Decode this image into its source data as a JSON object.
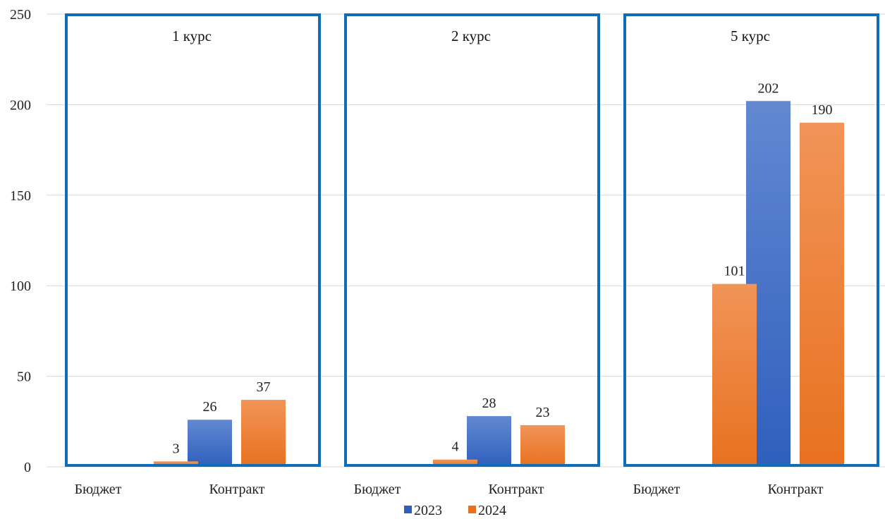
{
  "chart_data": {
    "type": "bar",
    "ylim": [
      0,
      250
    ],
    "yticks": [
      0,
      50,
      100,
      150,
      200,
      250
    ],
    "grid": true,
    "legend_position": "bottom",
    "colors": {
      "2023_top": "#6288d1",
      "2023_bottom": "#2f5fbd",
      "2024_top": "#f19458",
      "2024_bottom": "#e8711f",
      "panel_border": "#0f6db8",
      "grid": "#d9d9d9"
    },
    "legend": [
      {
        "key": "2023",
        "label": "2023"
      },
      {
        "key": "2024",
        "label": "2024"
      }
    ],
    "panels": [
      {
        "title": "1 курс",
        "categories": [
          "Бюджет",
          "Контракт"
        ],
        "series": [
          {
            "name": "2023",
            "values": [
              null,
              26
            ]
          },
          {
            "name": "2024",
            "values": [
              3,
              37
            ]
          }
        ]
      },
      {
        "title": "2 курс",
        "categories": [
          "Бюджет",
          "Контракт"
        ],
        "series": [
          {
            "name": "2023",
            "values": [
              null,
              28
            ]
          },
          {
            "name": "2024",
            "values": [
              4,
              23
            ]
          }
        ]
      },
      {
        "title": "5 курс",
        "categories": [
          "Бюджет",
          "Контракт"
        ],
        "series": [
          {
            "name": "2023",
            "values": [
              null,
              202
            ]
          },
          {
            "name": "2024",
            "values": [
              101,
              190
            ]
          }
        ]
      }
    ]
  }
}
